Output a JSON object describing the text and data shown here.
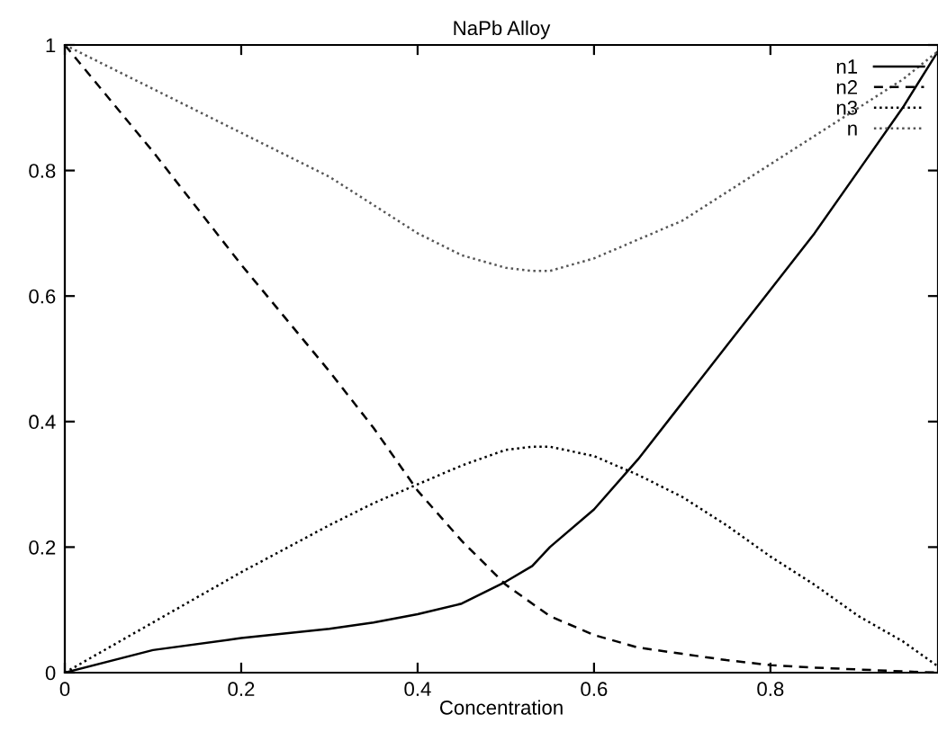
{
  "chart_data": {
    "type": "line",
    "title": "NaPb Alloy",
    "xlabel": "Concentration",
    "x": [
      0,
      0.1,
      0.2,
      0.3,
      0.35,
      0.4,
      0.45,
      0.5,
      0.53,
      0.55,
      0.6,
      0.65,
      0.7,
      0.75,
      0.8,
      0.85,
      0.9,
      0.95,
      0.99
    ],
    "series": [
      {
        "name": "n1",
        "color": "#000000",
        "line_style": "solid",
        "values": [
          0,
          0.036,
          0.055,
          0.07,
          0.08,
          0.093,
          0.11,
          0.145,
          0.17,
          0.2,
          0.26,
          0.34,
          0.43,
          0.52,
          0.61,
          0.7,
          0.8,
          0.9,
          0.99
        ]
      },
      {
        "name": "n2",
        "color": "#000000",
        "line_style": "dashed",
        "values": [
          1,
          0.83,
          0.65,
          0.48,
          0.39,
          0.29,
          0.21,
          0.14,
          0.11,
          0.09,
          0.06,
          0.04,
          0.03,
          0.02,
          0.012,
          0.008,
          0.005,
          0.002,
          0
        ]
      },
      {
        "name": "n3",
        "color": "#000000",
        "line_style": "dotted",
        "values": [
          0,
          0.08,
          0.16,
          0.235,
          0.27,
          0.3,
          0.33,
          0.355,
          0.36,
          0.36,
          0.345,
          0.315,
          0.28,
          0.235,
          0.185,
          0.14,
          0.09,
          0.05,
          0.01
        ]
      },
      {
        "name": "n",
        "color": "#555555",
        "line_style": "dotted",
        "values": [
          1,
          0.93,
          0.86,
          0.79,
          0.745,
          0.7,
          0.665,
          0.645,
          0.64,
          0.64,
          0.66,
          0.69,
          0.72,
          0.765,
          0.81,
          0.855,
          0.9,
          0.945,
          0.99
        ]
      }
    ],
    "xlim": [
      0,
      0.99
    ],
    "ylim": [
      0,
      1
    ],
    "xticks": [
      0,
      0.2,
      0.4,
      0.6,
      0.8
    ],
    "yticks": [
      0,
      0.2,
      0.4,
      0.6,
      0.8,
      1
    ],
    "grid": false,
    "legend": "top right",
    "marker": "none"
  }
}
